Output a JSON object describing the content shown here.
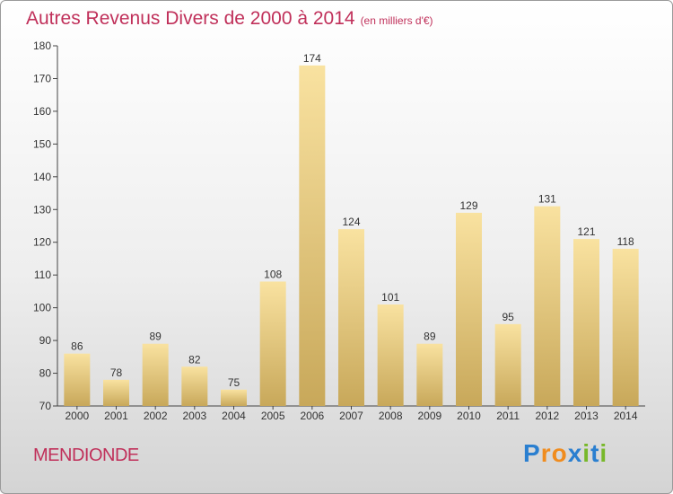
{
  "title": "Autres Revenus Divers de 2000 à 2014",
  "subtitle": "(en milliers d'€)",
  "place": "MENDIONDE",
  "logo": {
    "p": "P",
    "r": "r",
    "o": "o",
    "x": "x",
    "i1": "i",
    "t": "t",
    "i2": "i"
  },
  "colors": {
    "title": "#c0305a",
    "bar_light": "#f9e2a0",
    "bar_dark": "#c8a85a",
    "logo_blue": "#2a7fd0",
    "logo_orange": "#f08c1e",
    "logo_green": "#78b82a"
  },
  "chart_data": {
    "type": "bar",
    "categories": [
      "2000",
      "2001",
      "2002",
      "2003",
      "2004",
      "2005",
      "2006",
      "2007",
      "2008",
      "2009",
      "2010",
      "2011",
      "2012",
      "2013",
      "2014"
    ],
    "values": [
      86,
      78,
      89,
      82,
      75,
      108,
      174,
      124,
      101,
      89,
      129,
      95,
      131,
      121,
      118
    ],
    "ylim": [
      70,
      180
    ],
    "yticks": [
      70,
      80,
      90,
      100,
      110,
      120,
      130,
      140,
      150,
      160,
      170,
      180
    ],
    "grid": false
  }
}
